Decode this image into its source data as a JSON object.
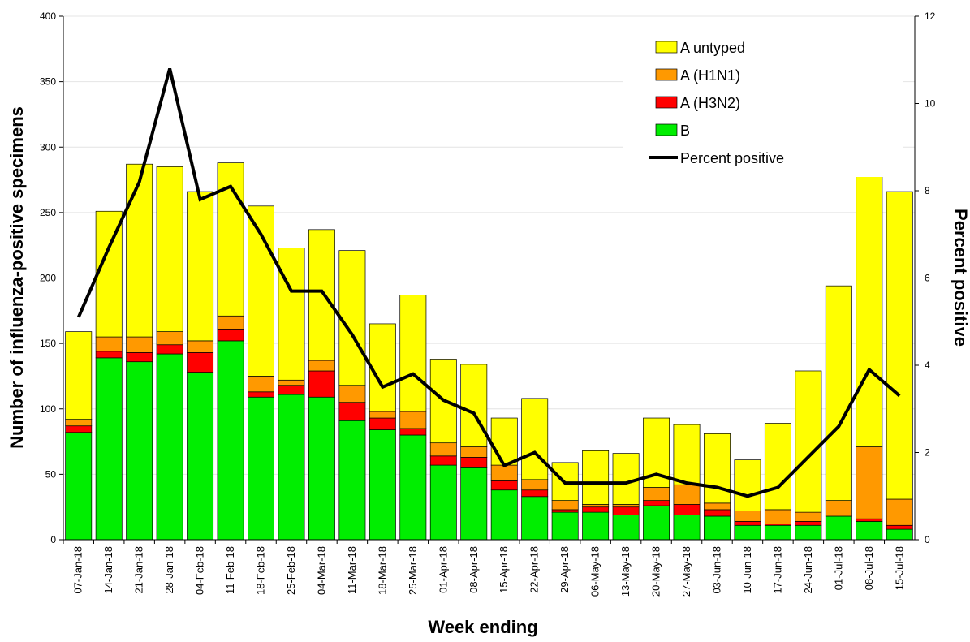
{
  "chart_data": {
    "type": "stacked-bar-line",
    "x_label": "Week ending",
    "y_label": "Number of influenza-positive specimens",
    "y2_label": "Percent positive",
    "categories": [
      "07-Jan-18",
      "14-Jan-18",
      "21-Jan-18",
      "28-Jan-18",
      "04-Feb-18",
      "11-Feb-18",
      "18-Feb-18",
      "25-Feb-18",
      "04-Mar-18",
      "11-Mar-18",
      "18-Mar-18",
      "25-Mar-18",
      "01-Apr-18",
      "08-Apr-18",
      "15-Apr-18",
      "22-Apr-18",
      "29-Apr-18",
      "06-May-18",
      "13-May-18",
      "20-May-18",
      "27-May-18",
      "03-Jun-18",
      "10-Jun-18",
      "17-Jun-18",
      "24-Jun-18",
      "01-Jul-18",
      "08-Jul-18",
      "15-Jul-18"
    ],
    "series": [
      {
        "name": "B",
        "color": "#00ee00",
        "values": [
          82,
          139,
          136,
          142,
          128,
          152,
          109,
          111,
          109,
          91,
          84,
          80,
          57,
          55,
          38,
          33,
          21,
          21,
          19,
          26,
          19,
          18,
          11,
          11,
          11,
          18,
          14,
          8
        ]
      },
      {
        "name": "A (H3N2)",
        "color": "#ff0000",
        "values": [
          5,
          5,
          7,
          7,
          15,
          9,
          4,
          7,
          20,
          14,
          9,
          5,
          7,
          8,
          7,
          5,
          2,
          4,
          6,
          4,
          8,
          5,
          3,
          1,
          3,
          0,
          2,
          3
        ]
      },
      {
        "name": "A (H1N1)",
        "color": "#ff9900",
        "values": [
          5,
          11,
          12,
          10,
          9,
          10,
          12,
          4,
          8,
          13,
          5,
          13,
          10,
          8,
          12,
          8,
          7,
          2,
          2,
          10,
          15,
          5,
          8,
          11,
          7,
          12,
          55,
          20
        ]
      },
      {
        "name": "A untyped",
        "color": "#ffff00",
        "values": [
          67,
          96,
          132,
          126,
          114,
          117,
          130,
          101,
          100,
          103,
          67,
          89,
          64,
          63,
          36,
          62,
          29,
          41,
          39,
          53,
          46,
          53,
          39,
          66,
          108,
          164,
          232,
          235
        ]
      },
      {
        "name": "Percent positive",
        "color": "#000000",
        "axis": "y2",
        "values": [
          5.1,
          6.7,
          8.2,
          10.8,
          7.8,
          8.1,
          7.0,
          5.7,
          5.7,
          4.7,
          3.5,
          3.8,
          3.2,
          2.9,
          1.7,
          2.0,
          1.3,
          1.3,
          1.3,
          1.5,
          1.3,
          1.2,
          1.0,
          1.2,
          1.9,
          2.6,
          3.9,
          3.3
        ]
      }
    ],
    "ylim": [
      0,
      400
    ],
    "yticks": [
      0,
      50,
      100,
      150,
      200,
      250,
      300,
      350,
      400
    ],
    "y2lim": [
      0,
      12
    ],
    "y2ticks": [
      0,
      2,
      4,
      6,
      8,
      10,
      12
    ],
    "grid": true
  }
}
